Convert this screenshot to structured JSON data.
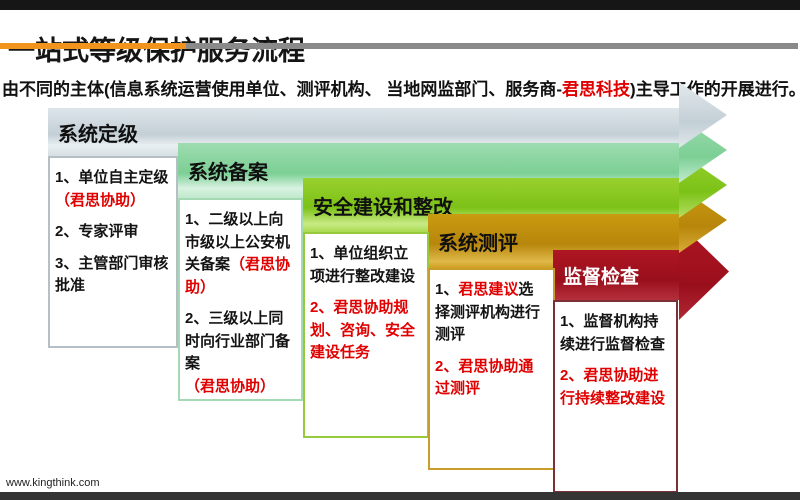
{
  "slide": {
    "title": "一站式等级保护服务流程",
    "subtitle": {
      "pre": "由不同的主体(信息系统运营使用单位、测评机构、 当地网监部门、服务商-",
      "brand": "君思科技",
      "post": ")主导工作的开展进行。"
    },
    "footer_url": "www.kingthink.com"
  },
  "colors": {
    "accent_orange": "#F0941E",
    "rule_gray": "#8A8A8A",
    "red_text": "#E00000",
    "step1_fill": "#C3CFD6",
    "step2_fill": "#7CCF95",
    "step3_fill": "#7CC217",
    "step4_fill": "#B8860B",
    "step5_fill": "#9A0F1C"
  },
  "steps": [
    {
      "label": "系统定级",
      "items": [
        {
          "segs": [
            {
              "text": "1、单位自主定级",
              "red": false
            },
            {
              "text": "（君思协助）",
              "red": true
            }
          ]
        },
        {
          "segs": [
            {
              "text": "2、专家评审",
              "red": false
            }
          ]
        },
        {
          "segs": [
            {
              "text": "3、主管部门审核批准",
              "red": false
            }
          ]
        }
      ]
    },
    {
      "label": "系统备案",
      "items": [
        {
          "segs": [
            {
              "text": "1、二级以上向市级以上公安机关备案",
              "red": false
            },
            {
              "text": "（君思协助）",
              "red": true
            }
          ]
        },
        {
          "segs": [
            {
              "text": "2、三级以上同时向行业部门备案",
              "red": false
            },
            {
              "text": "（君思协助）",
              "red": true
            }
          ]
        }
      ]
    },
    {
      "label": "安全建设和整改",
      "items": [
        {
          "segs": [
            {
              "text": "1、单位组织立项进行整改建设",
              "red": false
            }
          ]
        },
        {
          "segs": [
            {
              "text": "2、君思协助规划、咨询、安全建设任务",
              "red": true
            }
          ]
        }
      ]
    },
    {
      "label": "系统测评",
      "items": [
        {
          "segs": [
            {
              "text": "1、",
              "red": false
            },
            {
              "text": "君思建议",
              "red": true
            },
            {
              "text": "选择测评机构进行测评",
              "red": false
            }
          ]
        },
        {
          "segs": [
            {
              "text": "2、君思协助通过测评",
              "red": true
            }
          ]
        }
      ]
    },
    {
      "label": "监督检查",
      "items": [
        {
          "segs": [
            {
              "text": "1、监督机构持续进行监督检查",
              "red": false
            }
          ]
        },
        {
          "segs": [
            {
              "text": "2、君思协助进行持续整改建设",
              "red": true
            }
          ]
        }
      ]
    }
  ]
}
